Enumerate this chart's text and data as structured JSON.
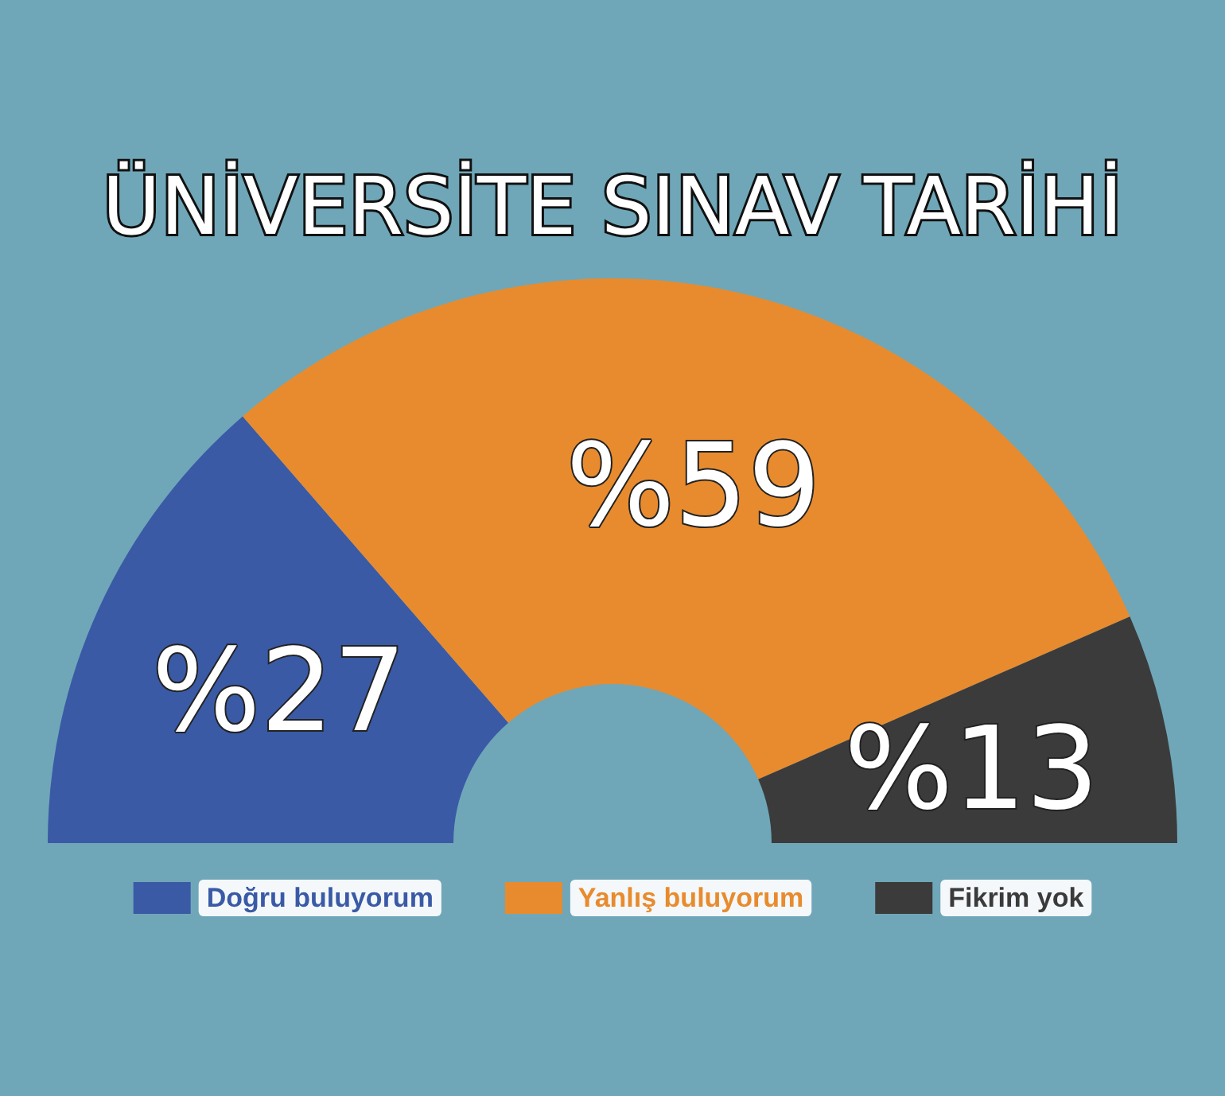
{
  "chart_data": {
    "type": "donut",
    "title": "ÜNİVERSİTE SINAV TARİHİ",
    "categories": [
      "Doğru buluyorum",
      "Yanlış buluyorum",
      "Fikrim yok"
    ],
    "values": [
      27,
      59,
      13
    ],
    "colors": [
      "#3a5aa6",
      "#e88b2e",
      "#3b3b3b"
    ],
    "value_labels": [
      "%27",
      "%59",
      "%13"
    ],
    "legend": "bottom"
  }
}
